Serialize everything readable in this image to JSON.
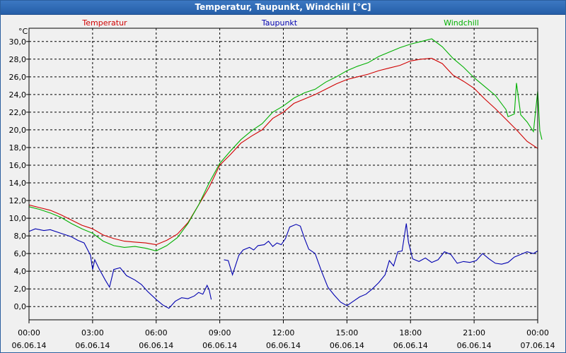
{
  "window": {
    "title": "Temperatur, Taupunkt, Windchill [°C]"
  },
  "colors": {
    "temperature": "#d00000",
    "dewpoint": "#0000b0",
    "windchill": "#00b000",
    "grid": "#000000",
    "background": "#f0f0f0"
  },
  "chart_data": {
    "type": "line",
    "title": "Temperatur, Taupunkt, Windchill [°C]",
    "ylabel": "°C",
    "xlabel": "",
    "xlim": [
      0,
      24
    ],
    "ylim": [
      -1.5,
      31.5
    ],
    "grid": true,
    "y_ticks": [
      "30,0",
      "28,0",
      "26,0",
      "24,0",
      "22,0",
      "20,0",
      "18,0",
      "16,0",
      "14,0",
      "12,0",
      "10,0",
      "8,0",
      "6,0",
      "4,0",
      "2,0",
      "0,0"
    ],
    "y_tick_values": [
      30,
      28,
      26,
      24,
      22,
      20,
      18,
      16,
      14,
      12,
      10,
      8,
      6,
      4,
      2,
      0
    ],
    "x_ticks": [
      {
        "time": "00:00",
        "date": "06.06.14",
        "hour": 0
      },
      {
        "time": "03:00",
        "date": "06.06.14",
        "hour": 3
      },
      {
        "time": "06:00",
        "date": "06.06.14",
        "hour": 6
      },
      {
        "time": "09:00",
        "date": "06.06.14",
        "hour": 9
      },
      {
        "time": "12:00",
        "date": "06.06.14",
        "hour": 12
      },
      {
        "time": "15:00",
        "date": "06.06.14",
        "hour": 15
      },
      {
        "time": "18:00",
        "date": "06.06.14",
        "hour": 18
      },
      {
        "time": "21:00",
        "date": "06.06.14",
        "hour": 21
      },
      {
        "time": "00:00",
        "date": "07.06.14",
        "hour": 24
      }
    ],
    "series": [
      {
        "name": "Temperatur",
        "color": "#d00000",
        "points": [
          [
            0,
            11.5
          ],
          [
            0.5,
            11.2
          ],
          [
            1,
            10.9
          ],
          [
            1.5,
            10.4
          ],
          [
            2,
            9.8
          ],
          [
            2.5,
            9.2
          ],
          [
            3,
            8.8
          ],
          [
            3.5,
            8.1
          ],
          [
            4,
            7.7
          ],
          [
            4.5,
            7.4
          ],
          [
            5,
            7.3
          ],
          [
            5.5,
            7.2
          ],
          [
            6,
            7.0
          ],
          [
            6.5,
            7.5
          ],
          [
            7,
            8.2
          ],
          [
            7.5,
            9.5
          ],
          [
            8,
            11.5
          ],
          [
            8.5,
            13.5
          ],
          [
            9,
            16.0
          ],
          [
            9.5,
            17.2
          ],
          [
            10,
            18.5
          ],
          [
            10.5,
            19.3
          ],
          [
            11,
            20.0
          ],
          [
            11.5,
            21.3
          ],
          [
            12,
            22.0
          ],
          [
            12.5,
            23.0
          ],
          [
            13,
            23.5
          ],
          [
            13.5,
            24.0
          ],
          [
            14,
            24.6
          ],
          [
            14.5,
            25.2
          ],
          [
            15,
            25.7
          ],
          [
            15.5,
            26.0
          ],
          [
            16,
            26.3
          ],
          [
            16.5,
            26.7
          ],
          [
            17,
            27.0
          ],
          [
            17.5,
            27.3
          ],
          [
            18,
            27.8
          ],
          [
            18.5,
            28.0
          ],
          [
            19,
            28.1
          ],
          [
            19.5,
            27.5
          ],
          [
            20,
            26.2
          ],
          [
            20.5,
            25.5
          ],
          [
            21,
            24.7
          ],
          [
            21.5,
            23.5
          ],
          [
            22,
            22.4
          ],
          [
            22.5,
            21.2
          ],
          [
            23,
            20.0
          ],
          [
            23.5,
            18.7
          ],
          [
            24,
            17.9
          ]
        ]
      },
      {
        "name": "Taupunkt",
        "color": "#0000b0",
        "segments": [
          [
            [
              0,
              8.5
            ],
            [
              0.3,
              8.8
            ],
            [
              0.7,
              8.6
            ],
            [
              1,
              8.7
            ],
            [
              1.5,
              8.3
            ],
            [
              2,
              7.9
            ],
            [
              2.3,
              7.5
            ],
            [
              2.6,
              7.2
            ],
            [
              2.9,
              5.8
            ],
            [
              3.0,
              4.2
            ],
            [
              3.1,
              5.3
            ],
            [
              3.3,
              4.3
            ],
            [
              3.6,
              3.0
            ],
            [
              3.8,
              2.2
            ],
            [
              4.0,
              4.2
            ],
            [
              4.3,
              4.4
            ],
            [
              4.6,
              3.5
            ],
            [
              5.0,
              3.0
            ],
            [
              5.3,
              2.5
            ],
            [
              5.6,
              1.7
            ],
            [
              6.0,
              0.8
            ],
            [
              6.3,
              0.2
            ],
            [
              6.6,
              -0.2
            ],
            [
              6.9,
              0.6
            ],
            [
              7.2,
              1.0
            ],
            [
              7.5,
              0.9
            ],
            [
              7.8,
              1.2
            ],
            [
              8.0,
              1.6
            ],
            [
              8.2,
              1.4
            ],
            [
              8.4,
              2.4
            ],
            [
              8.5,
              1.9
            ],
            [
              8.6,
              0.8
            ]
          ],
          [
            [
              9.2,
              5.3
            ],
            [
              9.4,
              5.2
            ],
            [
              9.6,
              3.6
            ],
            [
              9.9,
              5.8
            ],
            [
              10.1,
              6.4
            ],
            [
              10.4,
              6.7
            ],
            [
              10.6,
              6.4
            ],
            [
              10.8,
              6.9
            ],
            [
              11.1,
              7.0
            ],
            [
              11.3,
              7.4
            ],
            [
              11.5,
              6.8
            ],
            [
              11.7,
              7.2
            ],
            [
              11.9,
              7.0
            ],
            [
              12.1,
              7.7
            ],
            [
              12.3,
              9.0
            ],
            [
              12.6,
              9.3
            ],
            [
              12.8,
              9.1
            ],
            [
              13.0,
              7.7
            ],
            [
              13.2,
              6.5
            ],
            [
              13.5,
              6.0
            ],
            [
              13.8,
              4.0
            ],
            [
              14.1,
              2.2
            ],
            [
              14.4,
              1.3
            ],
            [
              14.7,
              0.5
            ],
            [
              15.0,
              0.1
            ],
            [
              15.3,
              0.6
            ],
            [
              15.6,
              1.1
            ],
            [
              15.9,
              1.4
            ],
            [
              16.2,
              2.0
            ],
            [
              16.5,
              2.7
            ],
            [
              16.8,
              3.6
            ],
            [
              17.0,
              5.2
            ],
            [
              17.2,
              4.6
            ],
            [
              17.4,
              6.2
            ],
            [
              17.6,
              6.3
            ],
            [
              17.8,
              9.4
            ],
            [
              17.9,
              7.3
            ],
            [
              18.1,
              5.4
            ],
            [
              18.4,
              5.1
            ],
            [
              18.7,
              5.5
            ],
            [
              19.0,
              5.0
            ],
            [
              19.3,
              5.3
            ],
            [
              19.6,
              6.2
            ],
            [
              19.9,
              5.9
            ],
            [
              20.2,
              4.9
            ],
            [
              20.5,
              5.1
            ],
            [
              20.8,
              5.0
            ],
            [
              21.1,
              5.2
            ],
            [
              21.4,
              6.0
            ],
            [
              21.7,
              5.4
            ],
            [
              22.0,
              4.9
            ],
            [
              22.3,
              4.8
            ],
            [
              22.6,
              5.0
            ],
            [
              22.9,
              5.6
            ],
            [
              23.2,
              5.9
            ],
            [
              23.5,
              6.2
            ],
            [
              23.8,
              6.0
            ],
            [
              24.0,
              6.3
            ]
          ]
        ]
      },
      {
        "name": "Windchill",
        "color": "#00b000",
        "points": [
          [
            0,
            11.3
          ],
          [
            0.5,
            11.0
          ],
          [
            1,
            10.6
          ],
          [
            1.5,
            10.1
          ],
          [
            2,
            9.4
          ],
          [
            2.5,
            8.8
          ],
          [
            3,
            8.3
          ],
          [
            3.5,
            7.4
          ],
          [
            4,
            6.9
          ],
          [
            4.5,
            6.7
          ],
          [
            5,
            6.8
          ],
          [
            5.5,
            6.6
          ],
          [
            6,
            6.3
          ],
          [
            6.5,
            6.9
          ],
          [
            7,
            7.8
          ],
          [
            7.5,
            9.4
          ],
          [
            8,
            11.5
          ],
          [
            8.5,
            14.0
          ],
          [
            9,
            16.2
          ],
          [
            9.5,
            17.6
          ],
          [
            10,
            18.9
          ],
          [
            10.5,
            19.9
          ],
          [
            11,
            20.7
          ],
          [
            11.5,
            22.0
          ],
          [
            12,
            22.7
          ],
          [
            12.5,
            23.6
          ],
          [
            13,
            24.2
          ],
          [
            13.5,
            24.6
          ],
          [
            14,
            25.4
          ],
          [
            14.5,
            26.0
          ],
          [
            15,
            26.7
          ],
          [
            15.5,
            27.2
          ],
          [
            16,
            27.6
          ],
          [
            16.5,
            28.3
          ],
          [
            17,
            28.8
          ],
          [
            17.5,
            29.3
          ],
          [
            18,
            29.7
          ],
          [
            18.5,
            30.0
          ],
          [
            19,
            30.3
          ],
          [
            19.5,
            29.4
          ],
          [
            20,
            28.1
          ],
          [
            20.5,
            27.1
          ],
          [
            21,
            25.9
          ],
          [
            21.5,
            24.9
          ],
          [
            22,
            23.9
          ],
          [
            22.5,
            22.3
          ],
          [
            22.6,
            21.5
          ],
          [
            22.9,
            21.8
          ],
          [
            23.0,
            25.3
          ],
          [
            23.2,
            21.7
          ],
          [
            23.5,
            20.9
          ],
          [
            23.8,
            19.8
          ],
          [
            24.0,
            24.4
          ],
          [
            24.1,
            19.9
          ],
          [
            24.2,
            18.9
          ]
        ]
      }
    ],
    "legend": [
      {
        "label": "Temperatur",
        "color": "#d00000"
      },
      {
        "label": "Taupunkt",
        "color": "#0000b0"
      },
      {
        "label": "Windchill",
        "color": "#00b000"
      }
    ]
  }
}
